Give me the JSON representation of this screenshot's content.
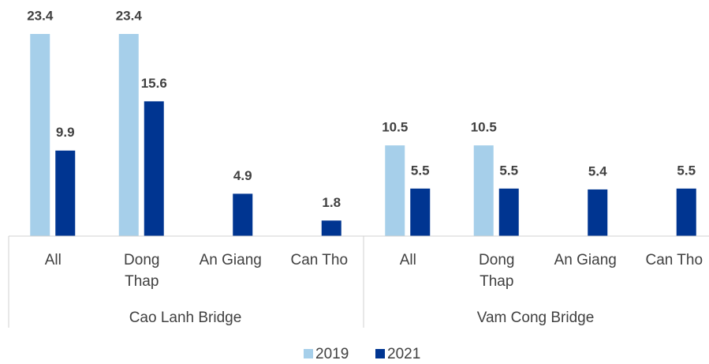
{
  "chart_data": {
    "type": "bar",
    "groups": [
      {
        "name": "Cao Lanh Bridge",
        "size": 4
      },
      {
        "name": "Vam Cong Bridge",
        "size": 4
      }
    ],
    "categories": [
      "All",
      "Dong Thap",
      "An Giang",
      "Can Tho",
      "All",
      "Dong Thap",
      "An Giang",
      "Can Tho"
    ],
    "series": [
      {
        "name": "2019",
        "color": "#a6cfea",
        "values": [
          23.4,
          23.4,
          null,
          null,
          10.5,
          10.5,
          null,
          null
        ]
      },
      {
        "name": "2021",
        "color": "#003591",
        "values": [
          9.9,
          15.6,
          4.9,
          1.8,
          5.5,
          5.5,
          5.4,
          5.5
        ]
      }
    ],
    "legend": "bottom"
  }
}
